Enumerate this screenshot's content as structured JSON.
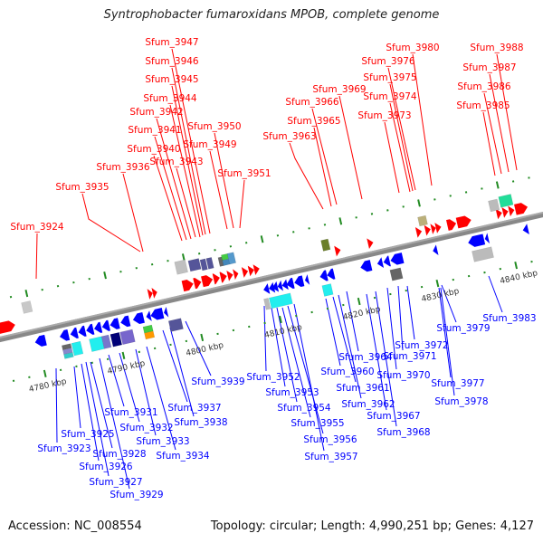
{
  "title": "Syntrophobacter fumaroxidans MPOB, complete genome",
  "footer": {
    "accession": "Accession: NC_008554",
    "summary": "Topology: circular; Length: 4,990,251 bp; Genes: 4,127"
  },
  "colors": {
    "forward": "#ff0000",
    "reverse": "#0000ff",
    "backbone": "#888888",
    "tick": "#228b22"
  },
  "kbp_labels": [
    "4780 kbp",
    "4790 kbp",
    "4800 kbp",
    "4810 kbp",
    "4820 kbp",
    "4830 kbp",
    "4840 kbp"
  ],
  "forward_labels": [
    "Sfum_3947",
    "Sfum_3946",
    "Sfum_3945",
    "Sfum_3944",
    "Sfum_3942",
    "Sfum_3950",
    "Sfum_3941",
    "Sfum_3949",
    "Sfum_3940",
    "Sfum_3943",
    "Sfum_3936",
    "Sfum_3951",
    "Sfum_3935",
    "Sfum_3924",
    "Sfum_3980",
    "Sfum_3976",
    "Sfum_3975",
    "Sfum_3974",
    "Sfum_3973",
    "Sfum_3969",
    "Sfum_3966",
    "Sfum_3965",
    "Sfum_3963",
    "Sfum_3988",
    "Sfum_3987",
    "Sfum_3986",
    "Sfum_3985"
  ],
  "reverse_labels": [
    "Sfum_3939",
    "Sfum_3952",
    "Sfum_3953",
    "Sfum_3954",
    "Sfum_3955",
    "Sfum_3956",
    "Sfum_3957",
    "Sfum_3960",
    "Sfum_3961",
    "Sfum_3962",
    "Sfum_3964",
    "Sfum_3970",
    "Sfum_3971",
    "Sfum_3972",
    "Sfum_3967",
    "Sfum_3968",
    "Sfum_3979",
    "Sfum_3983",
    "Sfum_3977",
    "Sfum_3978",
    "Sfum_3937",
    "Sfum_3938",
    "Sfum_3931",
    "Sfum_3932",
    "Sfum_3933",
    "Sfum_3934",
    "Sfum_3925",
    "Sfum_3923",
    "Sfum_3928",
    "Sfum_3926",
    "Sfum_3927",
    "Sfum_3929"
  ]
}
